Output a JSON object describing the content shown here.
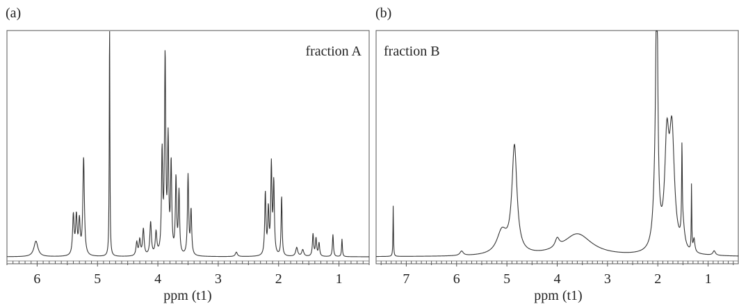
{
  "panels": {
    "a": {
      "label": "(a)"
    },
    "b": {
      "label": "(b)"
    }
  },
  "chart_data": [
    {
      "type": "line",
      "panel": "a",
      "annotation": "fraction A",
      "xlabel": "ppm (t1)",
      "ylabel": "",
      "xlim": [
        6.5,
        0.5
      ],
      "ylim": [
        0,
        1
      ],
      "x_reversed": true,
      "x_ticks": [
        6,
        5,
        4,
        3,
        2,
        1
      ],
      "peaks": [
        {
          "ppm": 6.02,
          "height": 0.07,
          "width": 0.04
        },
        {
          "ppm": 5.4,
          "height": 0.18,
          "width": 0.015
        },
        {
          "ppm": 5.35,
          "height": 0.17,
          "width": 0.015
        },
        {
          "ppm": 5.3,
          "height": 0.15,
          "width": 0.015
        },
        {
          "ppm": 5.23,
          "height": 0.44,
          "width": 0.015
        },
        {
          "ppm": 4.8,
          "height": 1.1,
          "width": 0.006
        },
        {
          "ppm": 4.35,
          "height": 0.06,
          "width": 0.015
        },
        {
          "ppm": 4.3,
          "height": 0.07,
          "width": 0.015
        },
        {
          "ppm": 4.24,
          "height": 0.12,
          "width": 0.015
        },
        {
          "ppm": 4.12,
          "height": 0.15,
          "width": 0.015
        },
        {
          "ppm": 4.03,
          "height": 0.1,
          "width": 0.015
        },
        {
          "ppm": 3.93,
          "height": 0.45,
          "width": 0.012
        },
        {
          "ppm": 3.88,
          "height": 0.88,
          "width": 0.012
        },
        {
          "ppm": 3.83,
          "height": 0.5,
          "width": 0.012
        },
        {
          "ppm": 3.78,
          "height": 0.4,
          "width": 0.012
        },
        {
          "ppm": 3.7,
          "height": 0.34,
          "width": 0.012
        },
        {
          "ppm": 3.65,
          "height": 0.28,
          "width": 0.012
        },
        {
          "ppm": 3.5,
          "height": 0.36,
          "width": 0.012
        },
        {
          "ppm": 3.45,
          "height": 0.2,
          "width": 0.012
        },
        {
          "ppm": 2.7,
          "height": 0.02,
          "width": 0.02
        },
        {
          "ppm": 2.22,
          "height": 0.28,
          "width": 0.012
        },
        {
          "ppm": 2.17,
          "height": 0.2,
          "width": 0.012
        },
        {
          "ppm": 2.12,
          "height": 0.4,
          "width": 0.012
        },
        {
          "ppm": 2.08,
          "height": 0.32,
          "width": 0.012
        },
        {
          "ppm": 1.95,
          "height": 0.27,
          "width": 0.01
        },
        {
          "ppm": 1.7,
          "height": 0.04,
          "width": 0.02
        },
        {
          "ppm": 1.6,
          "height": 0.03,
          "width": 0.02
        },
        {
          "ppm": 1.43,
          "height": 0.1,
          "width": 0.012
        },
        {
          "ppm": 1.38,
          "height": 0.08,
          "width": 0.012
        },
        {
          "ppm": 1.33,
          "height": 0.06,
          "width": 0.012
        },
        {
          "ppm": 1.1,
          "height": 0.1,
          "width": 0.01
        },
        {
          "ppm": 0.95,
          "height": 0.08,
          "width": 0.008
        }
      ]
    },
    {
      "type": "line",
      "panel": "b",
      "annotation": "fraction B",
      "xlabel": "ppm (t1)",
      "ylabel": "",
      "xlim": [
        7.6,
        0.4
      ],
      "ylim": [
        0,
        1
      ],
      "x_reversed": true,
      "x_ticks": [
        7,
        6,
        5,
        4,
        3,
        2,
        1
      ],
      "peaks": [
        {
          "ppm": 7.26,
          "height": 0.23,
          "width": 0.006
        },
        {
          "ppm": 5.9,
          "height": 0.02,
          "width": 0.04
        },
        {
          "ppm": 5.1,
          "height": 0.1,
          "width": 0.12
        },
        {
          "ppm": 4.85,
          "height": 0.48,
          "width": 0.06
        },
        {
          "ppm": 4.0,
          "height": 0.04,
          "width": 0.05
        },
        {
          "ppm": 3.6,
          "height": 0.1,
          "width": 0.35
        },
        {
          "ppm": 2.02,
          "height": 1.15,
          "width": 0.02
        },
        {
          "ppm": 2.04,
          "height": 0.3,
          "width": 0.05
        },
        {
          "ppm": 1.82,
          "height": 0.45,
          "width": 0.05
        },
        {
          "ppm": 1.72,
          "height": 0.52,
          "width": 0.06
        },
        {
          "ppm": 1.52,
          "height": 0.38,
          "width": 0.008
        },
        {
          "ppm": 1.5,
          "height": 0.1,
          "width": 0.04
        },
        {
          "ppm": 1.33,
          "height": 0.3,
          "width": 0.006
        },
        {
          "ppm": 1.28,
          "height": 0.06,
          "width": 0.02
        },
        {
          "ppm": 0.88,
          "height": 0.02,
          "width": 0.03
        }
      ]
    }
  ]
}
